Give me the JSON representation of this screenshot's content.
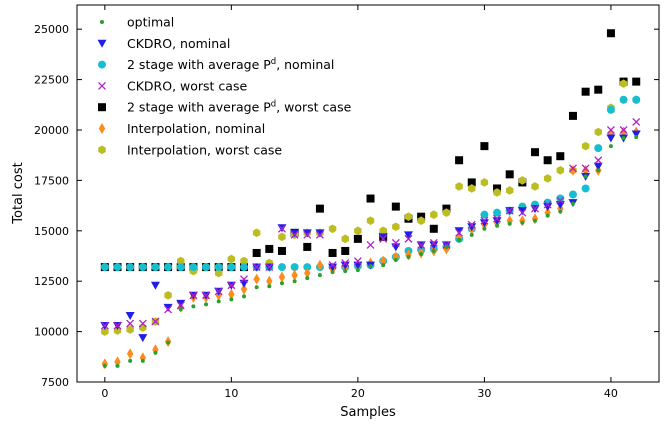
{
  "chart_data": {
    "type": "scatter",
    "title": "",
    "xlabel": "Samples",
    "ylabel": "Total cost",
    "xlim": [
      -2.2,
      43.8
    ],
    "ylim": [
      7500,
      26200
    ],
    "xticks": [
      0,
      10,
      20,
      30,
      40
    ],
    "yticks": [
      7500,
      10000,
      12500,
      15000,
      17500,
      20000,
      22500,
      25000
    ],
    "grid": false,
    "legend_position": "top-left",
    "series": [
      {
        "name": "optimal",
        "legend_label": {
          "text": "optimal",
          "sup": "",
          "tail": ""
        },
        "marker": "dot",
        "color": "#2ca02c",
        "values": [
          8300,
          8300,
          8550,
          8550,
          8950,
          9450,
          11100,
          11250,
          11350,
          11500,
          11600,
          11750,
          12200,
          12250,
          12400,
          12500,
          12650,
          12800,
          12950,
          13000,
          13050,
          13250,
          13300,
          13550,
          13700,
          13850,
          14000,
          14200,
          14550,
          14800,
          15100,
          15250,
          15350,
          15400,
          15500,
          15750,
          15950,
          16350,
          17700,
          18000,
          19200,
          19600,
          19650
        ]
      },
      {
        "name": "CKDRO, nominal",
        "legend_label": {
          "text": "CKDRO, nominal",
          "sup": "",
          "tail": ""
        },
        "marker": "triangle-down",
        "color": "#1f1fe6",
        "values": [
          10300,
          10300,
          10800,
          9700,
          12300,
          11200,
          11400,
          11800,
          11800,
          12000,
          12300,
          12400,
          13200,
          13200,
          15150,
          14900,
          14900,
          14900,
          13200,
          13300,
          13300,
          13300,
          14700,
          14200,
          14800,
          14300,
          14300,
          14300,
          15000,
          15200,
          15400,
          15500,
          16000,
          16000,
          16100,
          16200,
          16300,
          16400,
          17700,
          18200,
          19600,
          19600,
          19800
        ]
      },
      {
        "name": "2 stage with average Pd, nominal",
        "legend_label": {
          "text": "2 stage with average P",
          "sup": "d",
          "tail": ", nominal"
        },
        "marker": "circle",
        "color": "#17becf",
        "values": [
          13200,
          13200,
          13200,
          13200,
          13200,
          13200,
          13200,
          13200,
          13200,
          13200,
          13200,
          13200,
          13200,
          13200,
          13200,
          13200,
          13200,
          13200,
          13200,
          13200,
          13250,
          13300,
          13500,
          13700,
          14000,
          14050,
          14100,
          14200,
          14600,
          15100,
          15800,
          15900,
          16000,
          16200,
          16300,
          16400,
          16600,
          16800,
          17100,
          19100,
          21000,
          21500,
          21500
        ]
      },
      {
        "name": "CKDRO, worst case",
        "legend_label": {
          "text": "CKDRO, worst case",
          "sup": "",
          "tail": ""
        },
        "marker": "cross",
        "color": "#b020c8",
        "values": [
          10300,
          10300,
          10400,
          10400,
          10500,
          11100,
          11300,
          11800,
          11800,
          12000,
          12300,
          12600,
          13200,
          13200,
          15100,
          14800,
          14800,
          14800,
          13300,
          13400,
          13500,
          14300,
          14600,
          14400,
          14600,
          14300,
          14400,
          14300,
          14900,
          15300,
          15500,
          15600,
          16000,
          15900,
          16100,
          16300,
          16500,
          18100,
          18100,
          18500,
          20000,
          20000,
          20400
        ]
      },
      {
        "name": "2 stage with average Pd, worst case",
        "legend_label": {
          "text": "2 stage with average P",
          "sup": "d",
          "tail": ", worst case"
        },
        "marker": "square",
        "color": "#000000",
        "values": [
          13200,
          13200,
          13200,
          13200,
          13200,
          13200,
          13200,
          13200,
          13200,
          13200,
          13200,
          13200,
          13900,
          14100,
          14000,
          14900,
          14200,
          16100,
          13900,
          14000,
          14600,
          16600,
          14700,
          16200,
          15600,
          15700,
          15100,
          16100,
          18500,
          17400,
          19200,
          17100,
          17800,
          17400,
          18900,
          18500,
          18700,
          20700,
          21900,
          22000,
          24800,
          22400,
          22400
        ]
      },
      {
        "name": "Interpolation, nominal",
        "legend_label": {
          "text": "Interpolation, nominal",
          "sup": "",
          "tail": ""
        },
        "marker": "diamond",
        "color": "#ff8c1a",
        "values": [
          8400,
          8500,
          8900,
          8700,
          9100,
          9500,
          11200,
          11700,
          11700,
          11800,
          11850,
          12100,
          12600,
          12500,
          12700,
          12800,
          12900,
          13300,
          13100,
          13200,
          13300,
          13400,
          13500,
          13700,
          13800,
          13900,
          14000,
          14100,
          14700,
          15100,
          15300,
          15400,
          15500,
          15500,
          15600,
          15900,
          16100,
          18000,
          18000,
          18000,
          19800,
          19900,
          19900
        ]
      },
      {
        "name": "Interpolation, worst case",
        "legend_label": {
          "text": "Interpolation, worst case",
          "sup": "",
          "tail": ""
        },
        "marker": "hexagon",
        "color": "#bcbd22",
        "values": [
          10000,
          10050,
          10100,
          10200,
          10500,
          11800,
          13500,
          13000,
          13200,
          12900,
          13600,
          13500,
          14900,
          13400,
          14700,
          14800,
          14900,
          14900,
          15100,
          14600,
          15000,
          15500,
          15000,
          15200,
          15700,
          15500,
          15800,
          15900,
          17200,
          17100,
          17400,
          16900,
          17000,
          17500,
          17200,
          17600,
          18000,
          18000,
          19200,
          19900,
          21100,
          22300,
          21500
        ]
      }
    ]
  }
}
